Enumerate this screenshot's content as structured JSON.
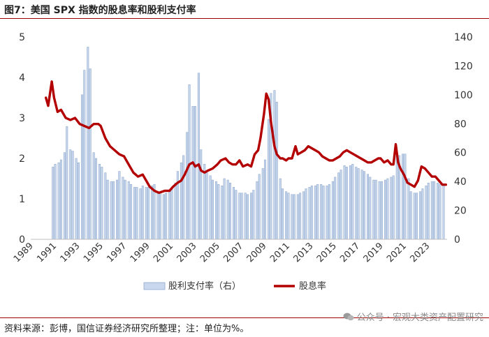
{
  "figure": {
    "title": "图7：美国 SPX 指数的股息率和股利支付率",
    "source": "资料来源：彭博，国信证券经济研究所整理；注：单位为%。",
    "watermark": "公众号 · 宏观大类资产配置研究"
  },
  "chart_data": {
    "type": "bar+line",
    "x_ticks": [
      "1989",
      "1991",
      "1993",
      "1995",
      "1997",
      "1999",
      "2001",
      "2003",
      "2005",
      "2007",
      "2009",
      "2011",
      "2013",
      "2015",
      "2017",
      "2019",
      "2021",
      "2023"
    ],
    "x_range": [
      1989,
      2024.7
    ],
    "y_left": {
      "ticks": [
        "0",
        "1",
        "2",
        "3",
        "4",
        "5"
      ],
      "range": [
        0,
        5
      ]
    },
    "y_right": {
      "ticks": [
        "0",
        "20",
        "40",
        "60",
        "80",
        "100",
        "120",
        "140"
      ],
      "range": [
        0,
        140
      ]
    },
    "legend": {
      "placement": "bottom-center"
    },
    "series": [
      {
        "name": "股利支付率（右）",
        "type": "bar",
        "axis": "right",
        "color": "#c9d8ec",
        "edge": "#8fa9cf",
        "points": [
          [
            1990.9,
            50
          ],
          [
            1991.1,
            52
          ],
          [
            1991.4,
            53
          ],
          [
            1991.6,
            55
          ],
          [
            1991.9,
            60
          ],
          [
            1992.1,
            78
          ],
          [
            1992.4,
            62
          ],
          [
            1992.6,
            61
          ],
          [
            1992.9,
            56
          ],
          [
            1993.1,
            53
          ],
          [
            1993.4,
            100
          ],
          [
            1993.6,
            117
          ],
          [
            1993.9,
            133
          ],
          [
            1994.1,
            118
          ],
          [
            1994.4,
            60
          ],
          [
            1994.6,
            56
          ],
          [
            1994.9,
            52
          ],
          [
            1995.1,
            50
          ],
          [
            1995.4,
            46
          ],
          [
            1995.6,
            41
          ],
          [
            1995.9,
            40
          ],
          [
            1996.1,
            40
          ],
          [
            1996.4,
            41
          ],
          [
            1996.6,
            47
          ],
          [
            1996.9,
            43
          ],
          [
            1997.1,
            41
          ],
          [
            1997.4,
            40
          ],
          [
            1997.6,
            38
          ],
          [
            1997.9,
            36
          ],
          [
            1998.1,
            36
          ],
          [
            1998.4,
            35
          ],
          [
            1998.6,
            37
          ],
          [
            1998.9,
            36
          ],
          [
            1999.1,
            36
          ],
          [
            1999.4,
            37
          ],
          [
            1999.6,
            38
          ],
          [
            1999.9,
            33
          ],
          [
            2000.1,
            32
          ],
          [
            2000.4,
            31
          ],
          [
            2000.6,
            32
          ],
          [
            2000.9,
            33
          ],
          [
            2001.1,
            35
          ],
          [
            2001.4,
            39
          ],
          [
            2001.6,
            47
          ],
          [
            2001.9,
            53
          ],
          [
            2002.1,
            58
          ],
          [
            2002.4,
            74
          ],
          [
            2002.6,
            107
          ],
          [
            2002.9,
            92
          ],
          [
            2003.1,
            92
          ],
          [
            2003.4,
            115
          ],
          [
            2003.6,
            62
          ],
          [
            2003.9,
            52
          ],
          [
            2004.1,
            46
          ],
          [
            2004.4,
            44
          ],
          [
            2004.6,
            41
          ],
          [
            2004.9,
            40
          ],
          [
            2005.1,
            38
          ],
          [
            2005.4,
            37
          ],
          [
            2005.6,
            42
          ],
          [
            2005.9,
            41
          ],
          [
            2006.1,
            39
          ],
          [
            2006.4,
            36
          ],
          [
            2006.6,
            34
          ],
          [
            2006.9,
            32
          ],
          [
            2007.1,
            32
          ],
          [
            2007.4,
            32
          ],
          [
            2007.6,
            31
          ],
          [
            2007.9,
            32
          ],
          [
            2008.1,
            34
          ],
          [
            2008.4,
            40
          ],
          [
            2008.6,
            45
          ],
          [
            2008.9,
            49
          ],
          [
            2009.1,
            55
          ],
          [
            2009.4,
            83
          ],
          [
            2009.6,
            101
          ],
          [
            2009.9,
            103
          ],
          [
            2010.1,
            95
          ],
          [
            2010.4,
            42
          ],
          [
            2010.6,
            35
          ],
          [
            2010.9,
            33
          ],
          [
            2011.1,
            32
          ],
          [
            2011.4,
            31
          ],
          [
            2011.6,
            31
          ],
          [
            2011.9,
            31
          ],
          [
            2012.1,
            32
          ],
          [
            2012.4,
            33
          ],
          [
            2012.6,
            35
          ],
          [
            2012.9,
            36
          ],
          [
            2013.1,
            37
          ],
          [
            2013.4,
            37
          ],
          [
            2013.6,
            38
          ],
          [
            2013.9,
            38
          ],
          [
            2014.1,
            37
          ],
          [
            2014.4,
            37
          ],
          [
            2014.6,
            38
          ],
          [
            2014.9,
            40
          ],
          [
            2015.1,
            43
          ],
          [
            2015.4,
            46
          ],
          [
            2015.6,
            48
          ],
          [
            2015.9,
            51
          ],
          [
            2016.1,
            50
          ],
          [
            2016.4,
            51
          ],
          [
            2016.6,
            52
          ],
          [
            2016.9,
            50
          ],
          [
            2017.1,
            49
          ],
          [
            2017.4,
            48
          ],
          [
            2017.6,
            47
          ],
          [
            2017.9,
            45
          ],
          [
            2018.1,
            43
          ],
          [
            2018.4,
            41
          ],
          [
            2018.6,
            41
          ],
          [
            2018.9,
            40
          ],
          [
            2019.1,
            40
          ],
          [
            2019.4,
            41
          ],
          [
            2019.6,
            42
          ],
          [
            2019.9,
            43
          ],
          [
            2020.1,
            44
          ],
          [
            2020.4,
            58
          ],
          [
            2020.6,
            58
          ],
          [
            2020.9,
            59
          ],
          [
            2021.1,
            59
          ],
          [
            2021.4,
            42
          ],
          [
            2021.6,
            33
          ],
          [
            2021.9,
            32
          ],
          [
            2022.1,
            32
          ],
          [
            2022.4,
            33
          ],
          [
            2022.6,
            35
          ],
          [
            2022.9,
            37
          ],
          [
            2023.1,
            39
          ],
          [
            2023.4,
            40
          ],
          [
            2023.6,
            40
          ],
          [
            2023.9,
            39
          ],
          [
            2024.1,
            38
          ],
          [
            2024.4,
            38
          ]
        ]
      },
      {
        "name": "股息率",
        "type": "line",
        "axis": "left",
        "color": "#b30000",
        "points": [
          [
            1990.3,
            3.5
          ],
          [
            1990.5,
            3.3
          ],
          [
            1990.8,
            3.9
          ],
          [
            1991.0,
            3.5
          ],
          [
            1991.3,
            3.15
          ],
          [
            1991.6,
            3.2
          ],
          [
            1992.0,
            3.0
          ],
          [
            1992.4,
            2.95
          ],
          [
            1992.8,
            3.0
          ],
          [
            1993.2,
            2.85
          ],
          [
            1993.6,
            2.8
          ],
          [
            1994.0,
            2.75
          ],
          [
            1994.4,
            2.85
          ],
          [
            1994.8,
            2.85
          ],
          [
            1995.0,
            2.8
          ],
          [
            1995.4,
            2.5
          ],
          [
            1995.8,
            2.3
          ],
          [
            1996.2,
            2.2
          ],
          [
            1996.6,
            2.1
          ],
          [
            1997.0,
            2.05
          ],
          [
            1997.4,
            1.85
          ],
          [
            1997.8,
            1.65
          ],
          [
            1998.2,
            1.55
          ],
          [
            1998.6,
            1.6
          ],
          [
            1998.9,
            1.45
          ],
          [
            1999.2,
            1.3
          ],
          [
            1999.6,
            1.2
          ],
          [
            2000.0,
            1.15
          ],
          [
            2000.5,
            1.2
          ],
          [
            2000.9,
            1.2
          ],
          [
            2001.2,
            1.3
          ],
          [
            2001.6,
            1.4
          ],
          [
            2001.9,
            1.45
          ],
          [
            2002.2,
            1.6
          ],
          [
            2002.6,
            1.85
          ],
          [
            2002.9,
            1.9
          ],
          [
            2003.1,
            1.8
          ],
          [
            2003.4,
            1.85
          ],
          [
            2003.6,
            1.7
          ],
          [
            2003.9,
            1.65
          ],
          [
            2004.2,
            1.7
          ],
          [
            2004.6,
            1.75
          ],
          [
            2005.0,
            1.85
          ],
          [
            2005.3,
            1.95
          ],
          [
            2005.7,
            2.0
          ],
          [
            2006.0,
            1.9
          ],
          [
            2006.3,
            1.85
          ],
          [
            2006.6,
            1.85
          ],
          [
            2006.9,
            1.95
          ],
          [
            2007.2,
            1.8
          ],
          [
            2007.6,
            1.85
          ],
          [
            2007.9,
            1.8
          ],
          [
            2008.2,
            2.1
          ],
          [
            2008.5,
            2.2
          ],
          [
            2008.7,
            2.5
          ],
          [
            2009.0,
            3.1
          ],
          [
            2009.2,
            3.6
          ],
          [
            2009.4,
            3.45
          ],
          [
            2009.6,
            2.9
          ],
          [
            2009.9,
            2.3
          ],
          [
            2010.1,
            2.1
          ],
          [
            2010.4,
            2.0
          ],
          [
            2010.6,
            2.0
          ],
          [
            2010.9,
            1.95
          ],
          [
            2011.1,
            2.0
          ],
          [
            2011.4,
            2.0
          ],
          [
            2011.7,
            2.3
          ],
          [
            2011.9,
            2.1
          ],
          [
            2012.2,
            2.15
          ],
          [
            2012.5,
            2.2
          ],
          [
            2012.8,
            2.3
          ],
          [
            2013.1,
            2.25
          ],
          [
            2013.4,
            2.2
          ],
          [
            2013.7,
            2.15
          ],
          [
            2014.0,
            2.05
          ],
          [
            2014.3,
            2.0
          ],
          [
            2014.6,
            1.95
          ],
          [
            2014.9,
            1.95
          ],
          [
            2015.2,
            2.0
          ],
          [
            2015.5,
            2.05
          ],
          [
            2015.8,
            2.15
          ],
          [
            2016.1,
            2.2
          ],
          [
            2016.4,
            2.15
          ],
          [
            2016.7,
            2.1
          ],
          [
            2017.0,
            2.05
          ],
          [
            2017.3,
            2.0
          ],
          [
            2017.6,
            1.95
          ],
          [
            2017.9,
            1.9
          ],
          [
            2018.2,
            1.9
          ],
          [
            2018.5,
            1.95
          ],
          [
            2018.8,
            2.0
          ],
          [
            2019.0,
            2.0
          ],
          [
            2019.3,
            1.9
          ],
          [
            2019.6,
            1.95
          ],
          [
            2019.9,
            1.85
          ],
          [
            2020.1,
            1.85
          ],
          [
            2020.3,
            2.35
          ],
          [
            2020.5,
            1.9
          ],
          [
            2020.7,
            1.75
          ],
          [
            2021.0,
            1.6
          ],
          [
            2021.3,
            1.4
          ],
          [
            2021.6,
            1.35
          ],
          [
            2021.9,
            1.3
          ],
          [
            2022.2,
            1.45
          ],
          [
            2022.5,
            1.8
          ],
          [
            2022.8,
            1.75
          ],
          [
            2023.1,
            1.65
          ],
          [
            2023.4,
            1.55
          ],
          [
            2023.7,
            1.55
          ],
          [
            2024.0,
            1.45
          ],
          [
            2024.3,
            1.35
          ],
          [
            2024.6,
            1.35
          ]
        ]
      }
    ]
  }
}
